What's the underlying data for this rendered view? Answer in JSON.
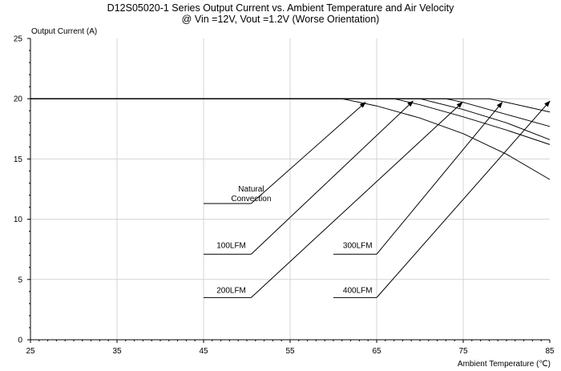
{
  "chart_data": {
    "type": "line",
    "title": "D12S05020-1 Series Output Current vs. Ambient Temperature and Air Velocity",
    "subtitle": "@ Vin =12V, Vout =1.2V (Worse Orientation)",
    "xlabel": "Ambient Temperature (℃)",
    "ylabel": "Output Current (A)",
    "xlim": [
      25,
      85
    ],
    "ylim": [
      0,
      25
    ],
    "x_ticks": [
      "25",
      "35",
      "45",
      "55",
      "65",
      "75",
      "85"
    ],
    "y_ticks": [
      "0",
      "5",
      "10",
      "15",
      "20",
      "25"
    ],
    "grid": true,
    "series": [
      {
        "name": "Natural Convection",
        "x": [
          25,
          61,
          65,
          70,
          75,
          80,
          85
        ],
        "y": [
          20,
          20,
          19.4,
          18.4,
          17.1,
          15.4,
          13.3
        ]
      },
      {
        "name": "100LFM",
        "x": [
          25,
          67,
          70,
          75,
          80,
          85
        ],
        "y": [
          20,
          20,
          19.5,
          18.5,
          17.4,
          16.2
        ]
      },
      {
        "name": "200LFM",
        "x": [
          25,
          70,
          75,
          80,
          85
        ],
        "y": [
          20,
          20,
          19.1,
          18.0,
          16.6
        ]
      },
      {
        "name": "300LFM",
        "x": [
          25,
          73,
          75,
          80,
          85
        ],
        "y": [
          20,
          20,
          19.7,
          18.7,
          17.7
        ]
      },
      {
        "name": "400LFM",
        "x": [
          25,
          78,
          80,
          85
        ],
        "y": [
          20,
          20,
          19.7,
          18.9
        ]
      }
    ],
    "annotations": [
      {
        "label": [
          "Natural",
          "Convection"
        ],
        "text_at": [
          50.5,
          11.5
        ],
        "elbow": [
          50.5,
          11.3
        ],
        "line_start": [
          45,
          11.3
        ],
        "arrow_to": [
          63.7,
          19.7
        ]
      },
      {
        "label": [
          "100LFM"
        ],
        "text_at": [
          48.2,
          7.6
        ],
        "elbow": [
          50.5,
          7.1
        ],
        "line_start": [
          45,
          7.1
        ],
        "arrow_to": [
          69.2,
          19.8
        ]
      },
      {
        "label": [
          "200LFM"
        ],
        "text_at": [
          48.2,
          3.9
        ],
        "elbow": [
          50.5,
          3.5
        ],
        "line_start": [
          45,
          3.5
        ],
        "arrow_to": [
          74.9,
          19.7
        ]
      },
      {
        "label": [
          "300LFM"
        ],
        "text_at": [
          62.8,
          7.6
        ],
        "elbow": [
          65,
          7.1
        ],
        "line_start": [
          60,
          7.1
        ],
        "arrow_to": [
          79.5,
          19.7
        ]
      },
      {
        "label": [
          "400LFM"
        ],
        "text_at": [
          62.8,
          3.9
        ],
        "elbow": [
          65,
          3.5
        ],
        "line_start": [
          60,
          3.5
        ],
        "arrow_to": [
          85,
          19.8
        ]
      }
    ]
  }
}
